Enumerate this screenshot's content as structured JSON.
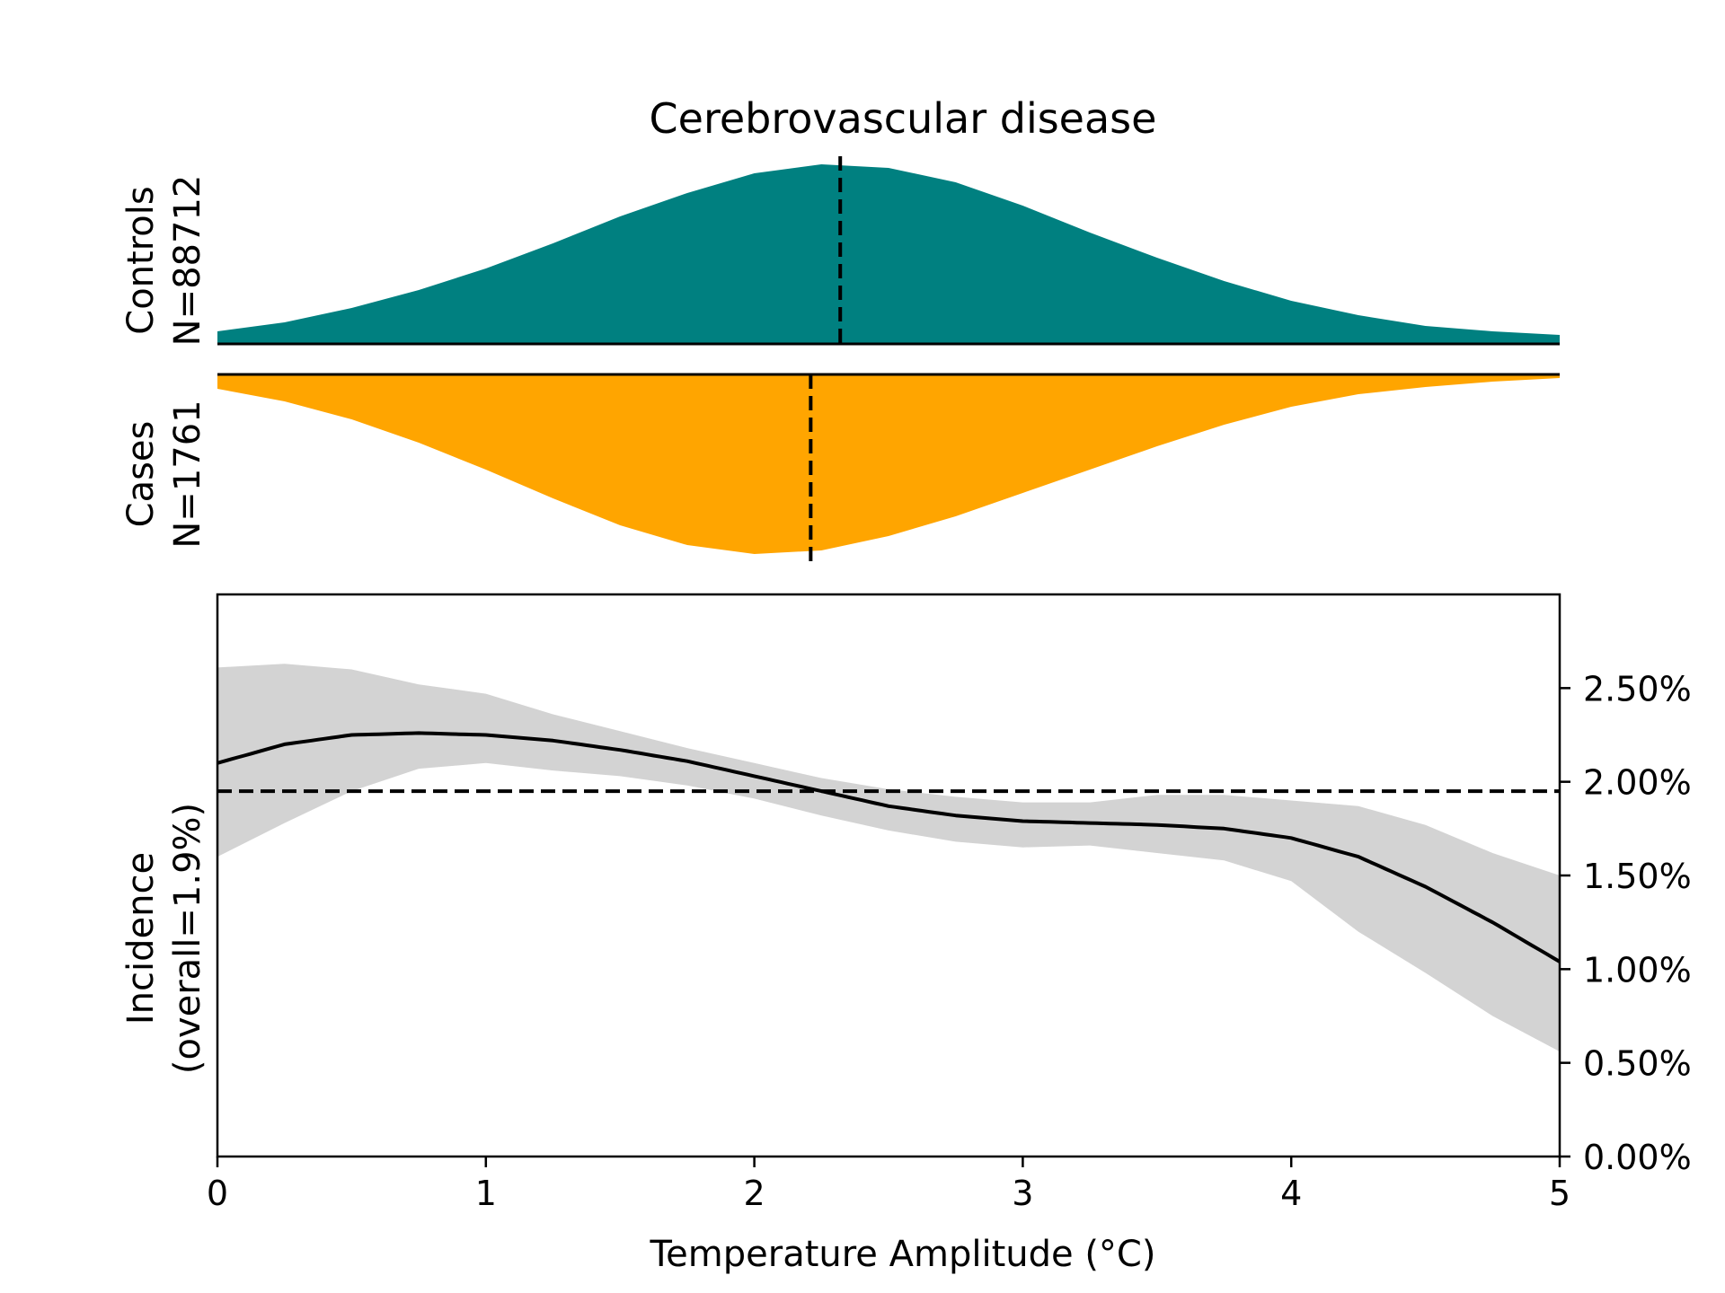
{
  "chart_data": [
    {
      "type": "area",
      "title": "Cerebrovascular disease",
      "group": "Controls",
      "label_lines": [
        "Controls",
        "N=88712"
      ],
      "color": "#008080",
      "x": [
        0,
        0.25,
        0.5,
        0.75,
        1.0,
        1.25,
        1.5,
        1.75,
        2.0,
        2.25,
        2.5,
        2.75,
        3.0,
        3.25,
        3.5,
        3.75,
        4.0,
        4.25,
        4.5,
        4.75,
        5.0
      ],
      "density": [
        0.07,
        0.12,
        0.2,
        0.3,
        0.42,
        0.56,
        0.71,
        0.84,
        0.95,
        1.0,
        0.98,
        0.9,
        0.77,
        0.62,
        0.48,
        0.35,
        0.24,
        0.16,
        0.1,
        0.07,
        0.05
      ],
      "median": 2.32,
      "xlim": [
        0,
        5
      ]
    },
    {
      "type": "area",
      "group": "Cases",
      "label_lines": [
        "Cases",
        "N=1761"
      ],
      "color": "#FFA500",
      "x": [
        0,
        0.25,
        0.5,
        0.75,
        1.0,
        1.25,
        1.5,
        1.75,
        2.0,
        2.25,
        2.5,
        2.75,
        3.0,
        3.25,
        3.5,
        3.75,
        4.0,
        4.25,
        4.5,
        4.75,
        5.0
      ],
      "density": [
        0.08,
        0.15,
        0.25,
        0.38,
        0.53,
        0.69,
        0.84,
        0.95,
        1.0,
        0.98,
        0.9,
        0.79,
        0.66,
        0.53,
        0.4,
        0.28,
        0.18,
        0.11,
        0.07,
        0.04,
        0.02
      ],
      "median": 2.21,
      "xlim": [
        0,
        5
      ]
    },
    {
      "type": "line",
      "xlabel": "Temperature Amplitude (°C)",
      "ylabel_lines": [
        "Incidence",
        "(overall=1.9%)"
      ],
      "x": [
        0,
        0.25,
        0.5,
        0.75,
        1.0,
        1.25,
        1.5,
        1.75,
        2.0,
        2.25,
        2.5,
        2.75,
        3.0,
        3.25,
        3.5,
        3.75,
        4.0,
        4.25,
        4.5,
        4.75,
        5.0
      ],
      "series": [
        {
          "values": [
            2.1,
            2.2,
            2.25,
            2.26,
            2.25,
            2.22,
            2.17,
            2.11,
            2.03,
            1.95,
            1.87,
            1.82,
            1.79,
            1.78,
            1.77,
            1.75,
            1.7,
            1.6,
            1.44,
            1.25,
            1.04
          ],
          "ci_lower": [
            1.6,
            1.78,
            1.95,
            2.07,
            2.1,
            2.06,
            2.03,
            1.98,
            1.91,
            1.82,
            1.74,
            1.68,
            1.65,
            1.66,
            1.62,
            1.58,
            1.47,
            1.2,
            0.98,
            0.75,
            0.56
          ],
          "ci_upper": [
            2.61,
            2.63,
            2.6,
            2.52,
            2.47,
            2.36,
            2.27,
            2.18,
            2.1,
            2.02,
            1.96,
            1.92,
            1.89,
            1.89,
            1.93,
            1.93,
            1.9,
            1.87,
            1.77,
            1.62,
            1.5
          ],
          "color": "#000000",
          "band_color": "#d3d3d3"
        }
      ],
      "reference_line": 1.95,
      "xlim": [
        0,
        5
      ],
      "xticks": [
        "0",
        "1",
        "2",
        "3",
        "4",
        "5"
      ],
      "ylim": [
        0,
        3.0
      ],
      "yticks": [
        "0.00%",
        "0.50%",
        "1.00%",
        "1.50%",
        "2.00%",
        "2.50%"
      ],
      "y_axis_side": "right"
    }
  ]
}
